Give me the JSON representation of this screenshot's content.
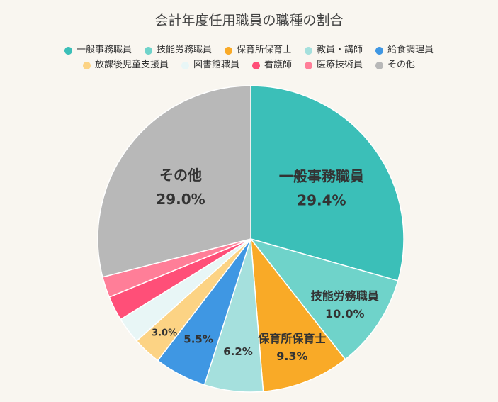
{
  "chart_data": {
    "type": "pie",
    "title": "会計年度任用職員の職種の割合",
    "legend_position": "top",
    "slices": [
      {
        "label": "一般事務職員",
        "value": 29.4,
        "value_label": "29.4%",
        "show_name": true,
        "color": "#3bbfb8"
      },
      {
        "label": "技能労務職員",
        "value": 10.0,
        "value_label": "10.0%",
        "show_name": true,
        "color": "#6fd3ca"
      },
      {
        "label": "保育所保育士",
        "value": 9.3,
        "value_label": "9.3%",
        "show_name": true,
        "color": "#f9aa27"
      },
      {
        "label": "教員・講師",
        "value": 6.2,
        "value_label": "6.2%",
        "show_name": false,
        "color": "#a5e0dd"
      },
      {
        "label": "給食調理員",
        "value": 5.5,
        "value_label": "5.5%",
        "show_name": false,
        "color": "#3f97e3"
      },
      {
        "label": "放課後児童支援員",
        "value": 3.0,
        "value_label": "3.0%",
        "show_name": false,
        "color": "#fcd384"
      },
      {
        "label": "図書館職員",
        "value": 2.8,
        "value_label": "",
        "show_name": false,
        "color": "#e8f6f6"
      },
      {
        "label": "看護師",
        "value": 2.6,
        "value_label": "",
        "show_name": false,
        "color": "#ff4f78"
      },
      {
        "label": "医療技術員",
        "value": 2.2,
        "value_label": "",
        "show_name": false,
        "color": "#ff7e98"
      },
      {
        "label": "その他",
        "value": 29.0,
        "value_label": "29.0%",
        "show_name": true,
        "color": "#b8b8b8"
      }
    ]
  }
}
